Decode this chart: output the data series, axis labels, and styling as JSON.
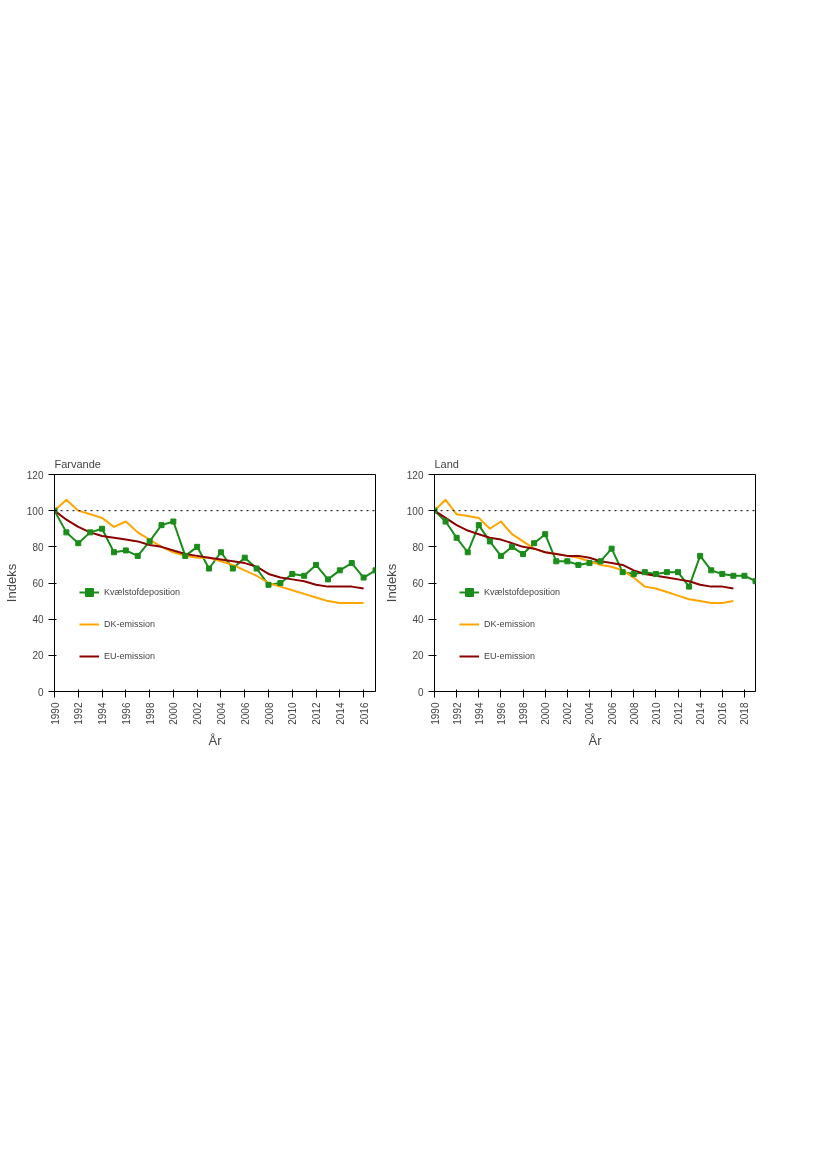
{
  "chart_data": [
    {
      "type": "line",
      "title": "Farvande",
      "xlabel": "År",
      "ylabel": "Indeks",
      "xlim": [
        1990,
        2017
      ],
      "ylim": [
        0,
        120
      ],
      "yticks": [
        0,
        20,
        40,
        60,
        80,
        100,
        120
      ],
      "xticks": [
        1990,
        1992,
        1994,
        1996,
        1998,
        2000,
        2002,
        2004,
        2006,
        2008,
        2010,
        2012,
        2014,
        2016
      ],
      "grid": false,
      "legend": "bottom left",
      "ref_lines": [
        {
          "axis": "y",
          "value": 100,
          "color": "#000000",
          "line_style": "dotted"
        }
      ],
      "series": [
        {
          "name": "Kvælstofdeposition",
          "color": "#1a8c1a",
          "marker": "square",
          "x": [
            1990,
            1991,
            1992,
            1993,
            1994,
            1995,
            1996,
            1997,
            1998,
            1999,
            2000,
            2001,
            2002,
            2003,
            2004,
            2005,
            2006,
            2007,
            2008,
            2009,
            2010,
            2011,
            2012,
            2013,
            2014,
            2015,
            2016,
            2017
          ],
          "values": [
            100,
            88,
            82,
            88,
            90,
            77,
            78,
            75,
            83,
            92,
            94,
            75,
            80,
            68,
            77,
            68,
            74,
            68,
            59,
            60,
            65,
            64,
            70,
            62,
            67,
            71,
            63,
            67
          ]
        },
        {
          "name": "DK-emission",
          "color": "#ffa500",
          "marker": "none",
          "x": [
            1990,
            1991,
            1992,
            1993,
            1994,
            1995,
            1996,
            1997,
            1998,
            1999,
            2000,
            2001,
            2002,
            2003,
            2004,
            2005,
            2006,
            2007,
            2008,
            2009,
            2010,
            2011,
            2012,
            2013,
            2014,
            2015,
            2016
          ],
          "values": [
            100,
            106,
            100,
            98,
            96,
            91,
            94,
            88,
            84,
            80,
            77,
            75,
            74,
            74,
            72,
            70,
            67,
            64,
            60,
            58,
            56,
            54,
            52,
            50,
            49,
            49,
            49
          ]
        },
        {
          "name": "EU-emission",
          "color": "#8b0000",
          "marker": "none",
          "x": [
            1990,
            1991,
            1992,
            1993,
            1994,
            1995,
            1996,
            1997,
            1998,
            1999,
            2000,
            2001,
            2002,
            2003,
            2004,
            2005,
            2006,
            2007,
            2008,
            2009,
            2010,
            2011,
            2012,
            2013,
            2014,
            2015,
            2016
          ],
          "values": [
            100,
            95,
            91,
            88,
            86,
            85,
            84,
            83,
            81,
            80,
            78,
            76,
            75,
            74,
            73,
            72,
            71,
            69,
            65,
            63,
            62,
            61,
            59,
            58,
            58,
            58,
            57
          ]
        }
      ]
    },
    {
      "type": "line",
      "title": "Land",
      "xlabel": "År",
      "ylabel": "Indeks",
      "xlim": [
        1990,
        2019
      ],
      "ylim": [
        0,
        120
      ],
      "yticks": [
        0,
        20,
        40,
        60,
        80,
        100,
        120
      ],
      "xticks": [
        1990,
        1992,
        1994,
        1996,
        1998,
        2000,
        2002,
        2004,
        2006,
        2008,
        2010,
        2012,
        2014,
        2016,
        2018
      ],
      "grid": false,
      "legend": "bottom left",
      "ref_lines": [
        {
          "axis": "y",
          "value": 100,
          "color": "#000000",
          "line_style": "dotted"
        }
      ],
      "series": [
        {
          "name": "Kvælstofdeposition",
          "color": "#1a8c1a",
          "marker": "square",
          "x": [
            1990,
            1991,
            1992,
            1993,
            1994,
            1995,
            1996,
            1997,
            1998,
            1999,
            2000,
            2001,
            2002,
            2003,
            2004,
            2005,
            2006,
            2007,
            2008,
            2009,
            2010,
            2011,
            2012,
            2013,
            2014,
            2015,
            2016,
            2017,
            2018,
            2019
          ],
          "values": [
            100,
            94,
            85,
            77,
            92,
            83,
            75,
            80,
            76,
            82,
            87,
            72,
            72,
            70,
            71,
            72,
            79,
            66,
            65,
            66,
            65,
            66,
            66,
            58,
            75,
            67,
            65,
            64,
            64,
            61
          ]
        },
        {
          "name": "DK-emission",
          "color": "#ffa500",
          "marker": "none",
          "x": [
            1990,
            1991,
            1992,
            1993,
            1994,
            1995,
            1996,
            1997,
            1998,
            1999,
            2000,
            2001,
            2002,
            2003,
            2004,
            2005,
            2006,
            2007,
            2008,
            2009,
            2010,
            2011,
            2012,
            2013,
            2014,
            2015,
            2016,
            2017
          ],
          "values": [
            100,
            106,
            98,
            97,
            96,
            90,
            94,
            87,
            83,
            79,
            77,
            76,
            75,
            74,
            72,
            70,
            69,
            67,
            63,
            58,
            57,
            55,
            53,
            51,
            50,
            49,
            49,
            50
          ]
        },
        {
          "name": "EU-emission",
          "color": "#8b0000",
          "marker": "none",
          "x": [
            1990,
            1991,
            1992,
            1993,
            1994,
            1995,
            1996,
            1997,
            1998,
            1999,
            2000,
            2001,
            2002,
            2003,
            2004,
            2005,
            2006,
            2007,
            2008,
            2009,
            2010,
            2011,
            2012,
            2013,
            2014,
            2015,
            2016,
            2017
          ],
          "values": [
            100,
            96,
            92,
            89,
            87,
            85,
            84,
            82,
            80,
            79,
            77,
            76,
            75,
            75,
            74,
            72,
            71,
            70,
            67,
            65,
            64,
            63,
            62,
            61,
            59,
            58,
            58,
            57
          ]
        }
      ]
    }
  ]
}
